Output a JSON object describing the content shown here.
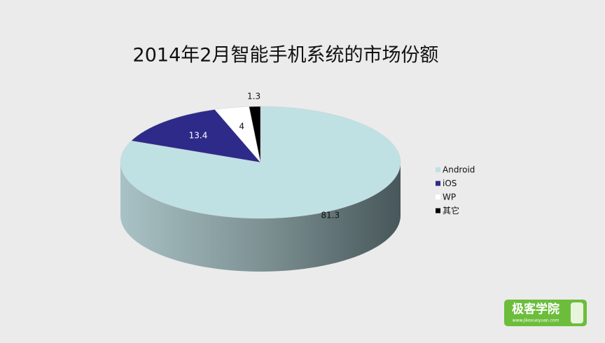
{
  "chart_data": {
    "type": "pie3d",
    "title": "2014年2月智能手机系统的市场份额",
    "categories": [
      "Android",
      "iOS",
      "WP",
      "其它"
    ],
    "values": [
      81.3,
      13.4,
      4,
      1.3
    ],
    "colors": [
      "#bfe1e4",
      "#2e2a8a",
      "#ffffff",
      "#000000"
    ],
    "legend": "right"
  },
  "watermark": {
    "title": "极客学院",
    "url": "www.jikexueyuan.com"
  }
}
